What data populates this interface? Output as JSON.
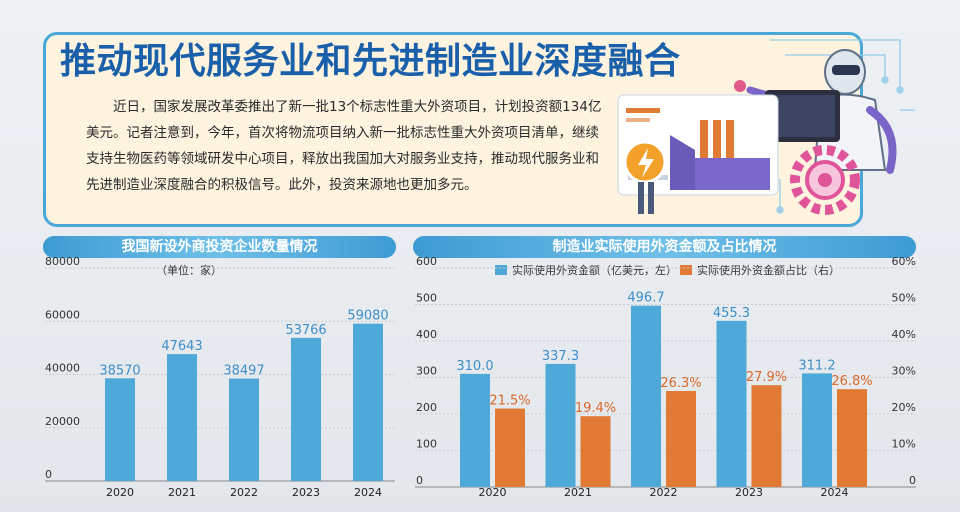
{
  "header": {
    "title": "推动现代服务业和先进制造业深度融合",
    "body": "近日，国家发展改革委推出了新一批13个标志性重大外资项目，计划投资额134亿美元。记者注意到，今年，首次将物流项目纳入新一批标志性重大外资项目清单，继续支持生物医药等领域研发中心项目，释放出我国加大对服务业支持，推动现代服务业和先进制造业深度融合的积极信号。此外，投资来源地也更加多元。"
  },
  "chart_data": [
    {
      "type": "bar",
      "title": "我国新设外商投资企业数量情况",
      "unit": "（单位：家）",
      "categories": [
        "2020",
        "2021",
        "2022",
        "2023",
        "2024"
      ],
      "values": [
        38570,
        47643,
        38497,
        53766,
        59080
      ],
      "value_labels": [
        "38570",
        "47643",
        "38497",
        "53766",
        "59080"
      ],
      "ylim": [
        0,
        80000
      ],
      "y_ticks": [
        "0",
        "20000",
        "40000",
        "60000",
        "80000"
      ],
      "grid": true
    },
    {
      "type": "bar",
      "title": "制造业实际使用外资金额及占比情况",
      "categories": [
        "2020",
        "2021",
        "2022",
        "2023",
        "2024"
      ],
      "series": [
        {
          "name": "实际使用外资金额（亿美元，左）",
          "axis": "left",
          "values": [
            310.0,
            337.3,
            496.7,
            455.3,
            311.2
          ],
          "value_labels": [
            "310.0",
            "337.3",
            "496.7",
            "455.3",
            "311.2"
          ]
        },
        {
          "name": "实际使用外资金额占比（右）",
          "axis": "right",
          "values": [
            21.5,
            19.4,
            26.3,
            27.9,
            26.8
          ],
          "value_labels": [
            "21.5%",
            "19.4%",
            "26.3%",
            "27.9%",
            "26.8%"
          ]
        }
      ],
      "ylim_left": [
        0,
        600
      ],
      "ylim_right": [
        0,
        60
      ],
      "y_ticks_left": [
        "0",
        "100",
        "200",
        "300",
        "400",
        "500",
        "600"
      ],
      "y_ticks_right": [
        "0",
        "10%",
        "20%",
        "30%",
        "40%",
        "50%",
        "60%"
      ],
      "legend_position": "top",
      "grid": true
    }
  ],
  "colors": {
    "blue_bar": "#4ea8d8",
    "orange_bar": "#e07a35",
    "blue_label": "#3d8fc9",
    "orange_label": "#d9682a",
    "title_blue": "#1a5faa"
  },
  "illustration_icons": [
    "robot-icon",
    "laptop-icon",
    "factory-icon",
    "lightning-coin-icon",
    "gear-icon",
    "circuit-icon"
  ]
}
